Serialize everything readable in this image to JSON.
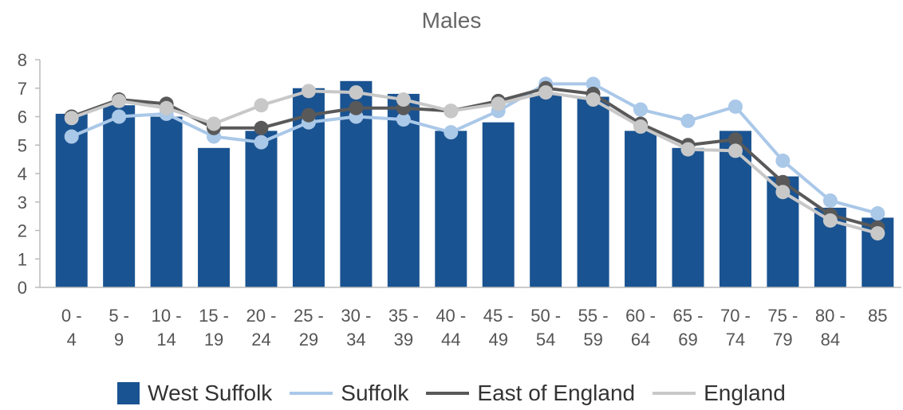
{
  "chart_data": {
    "type": "bar",
    "title": "Males",
    "categories": [
      "0 - 4",
      "5 - 9",
      "10 - 14",
      "15 - 19",
      "20 - 24",
      "25 - 29",
      "30 - 34",
      "35 - 39",
      "40 - 44",
      "45 - 49",
      "50 - 54",
      "55 - 59",
      "60 - 64",
      "65 - 69",
      "70 - 74",
      "75 - 79",
      "80 - 84",
      "85"
    ],
    "ylim": [
      0,
      8
    ],
    "yticks": [
      0,
      1,
      2,
      3,
      4,
      5,
      6,
      7,
      8
    ],
    "grid": false,
    "legend_position": "bottom",
    "series": [
      {
        "name": "West Suffolk",
        "kind": "bar",
        "color": "#1a5391",
        "values": [
          6.1,
          6.4,
          6.0,
          4.9,
          5.5,
          7.0,
          7.25,
          6.8,
          5.5,
          5.8,
          6.8,
          6.7,
          5.5,
          4.9,
          5.5,
          3.9,
          2.8,
          2.45
        ]
      },
      {
        "name": "Suffolk",
        "kind": "line",
        "color": "#aac8e8",
        "values": [
          5.3,
          6.0,
          6.1,
          5.3,
          5.1,
          5.8,
          6.0,
          5.9,
          5.45,
          6.2,
          7.15,
          7.15,
          6.25,
          5.85,
          6.35,
          4.45,
          3.05,
          2.6
        ]
      },
      {
        "name": "East of England",
        "kind": "line",
        "color": "#595959",
        "values": [
          6.0,
          6.6,
          6.45,
          5.6,
          5.6,
          6.05,
          6.3,
          6.3,
          6.2,
          6.55,
          7.0,
          6.8,
          5.75,
          5.0,
          5.2,
          3.7,
          2.55,
          2.1
        ]
      },
      {
        "name": "England",
        "kind": "line",
        "color": "#c8c8c8",
        "values": [
          5.95,
          6.55,
          6.3,
          5.75,
          6.4,
          6.9,
          6.85,
          6.6,
          6.2,
          6.45,
          6.85,
          6.6,
          5.65,
          4.85,
          4.8,
          3.35,
          2.35,
          1.9
        ]
      }
    ]
  }
}
